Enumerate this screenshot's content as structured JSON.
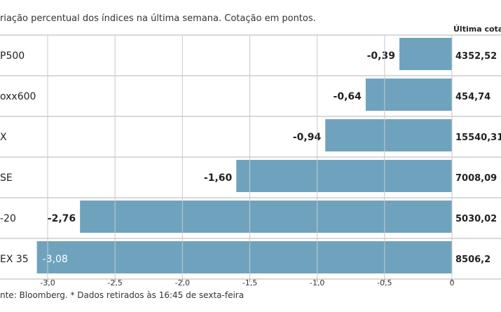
{
  "chart_data": {
    "type": "bar",
    "orientation": "horizontal",
    "subtitle": "riação percentual dos índices na última semana. Cotação em pontos.",
    "last_quote_header": "Última cotaç",
    "categories": [
      "P500",
      "oxx600",
      "X",
      "SE",
      "-20",
      "EX 35"
    ],
    "values": [
      -0.39,
      -0.64,
      -0.94,
      -1.6,
      -2.76,
      -3.08
    ],
    "value_labels": [
      "-0,39",
      "-0,64",
      "-0,94",
      "-1,60",
      "-2,76",
      "-3,08"
    ],
    "last_quotes": [
      "4352,52",
      "454,74",
      "15540,31",
      "7008,09",
      "5030,02",
      "8506,2"
    ],
    "x_ticks": [
      -3.0,
      -2.5,
      -2.0,
      -1.5,
      -1.0,
      -0.5,
      0
    ],
    "x_tick_labels": [
      "-3,0",
      "-2,5",
      "-2,0",
      "-1,5",
      "-1,0",
      "-0,5",
      "0"
    ],
    "xlim": [
      -3.1,
      0
    ],
    "grid": true,
    "bar_color": "#6fa3bd",
    "source": "nte: Bloomberg.  * Dados retirados às 16:45 de sexta-feira"
  }
}
